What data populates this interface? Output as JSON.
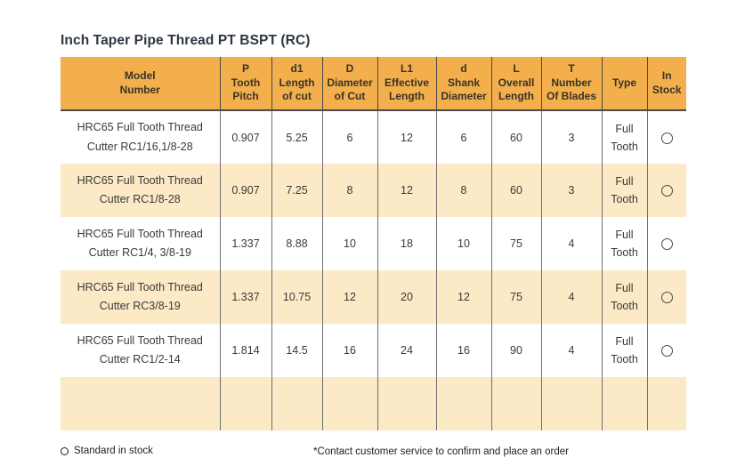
{
  "page": {
    "title": "Inch Taper Pipe Thread PT BSPT (RC)"
  },
  "colors": {
    "header_bg": "#F2AF4C",
    "alt_row_bg": "#FCE9C6",
    "row_bg": "#FFFFFF",
    "grid_line": "#6F6F6F",
    "header_line": "#4A4A4A",
    "title_color": "#2C3642",
    "text_color": "#3A3A3A"
  },
  "table": {
    "columns": [
      {
        "id": "model",
        "label": "Model\nNumber"
      },
      {
        "id": "p",
        "label": "P\nTooth\nPitch"
      },
      {
        "id": "d1",
        "label": "d1\nLength\nof cut"
      },
      {
        "id": "D",
        "label": "D\nDiameter\nof Cut"
      },
      {
        "id": "L1",
        "label": "L1\nEffective\nLength"
      },
      {
        "id": "d",
        "label": "d\nShank\nDiameter"
      },
      {
        "id": "L",
        "label": "L\nOverall\nLength"
      },
      {
        "id": "T",
        "label": "T\nNumber\nOf Blades"
      },
      {
        "id": "type",
        "label": "Type"
      },
      {
        "id": "in_stock",
        "label": "In\nStock"
      }
    ],
    "rows": [
      {
        "model": "HRC65 Full Tooth Thread\nCutter RC1/16,1/8-28",
        "p": "0.907",
        "d1": "5.25",
        "D": "6",
        "L1": "12",
        "d": "6",
        "L": "60",
        "T": "3",
        "type": "Full Tooth",
        "in_stock": "standard"
      },
      {
        "model": "HRC65 Full Tooth Thread\nCutter RC1/8-28",
        "p": "0.907",
        "d1": "7.25",
        "D": "8",
        "L1": "12",
        "d": "8",
        "L": "60",
        "T": "3",
        "type": "Full Tooth",
        "in_stock": "standard"
      },
      {
        "model": "HRC65 Full Tooth Thread\nCutter RC1/4, 3/8-19",
        "p": "1.337",
        "d1": "8.88",
        "D": "10",
        "L1": "18",
        "d": "10",
        "L": "75",
        "T": "4",
        "type": "Full Tooth",
        "in_stock": "standard"
      },
      {
        "model": "HRC65 Full Tooth Thread\nCutter RC3/8-19",
        "p": "1.337",
        "d1": "10.75",
        "D": "12",
        "L1": "20",
        "d": "12",
        "L": "75",
        "T": "4",
        "type": "Full Tooth",
        "in_stock": "standard"
      },
      {
        "model": "HRC65 Full Tooth Thread\nCutter RC1/2-14",
        "p": "1.814",
        "d1": "14.5",
        "D": "16",
        "L1": "24",
        "d": "16",
        "L": "90",
        "T": "4",
        "type": "Full Tooth",
        "in_stock": "standard"
      },
      {
        "model": "",
        "p": "",
        "d1": "",
        "D": "",
        "L1": "",
        "d": "",
        "L": "",
        "T": "",
        "type": "",
        "in_stock": ""
      }
    ]
  },
  "footer": {
    "legend_label": "Standard in stock",
    "note": "*Contact customer service to confirm and place an order"
  }
}
